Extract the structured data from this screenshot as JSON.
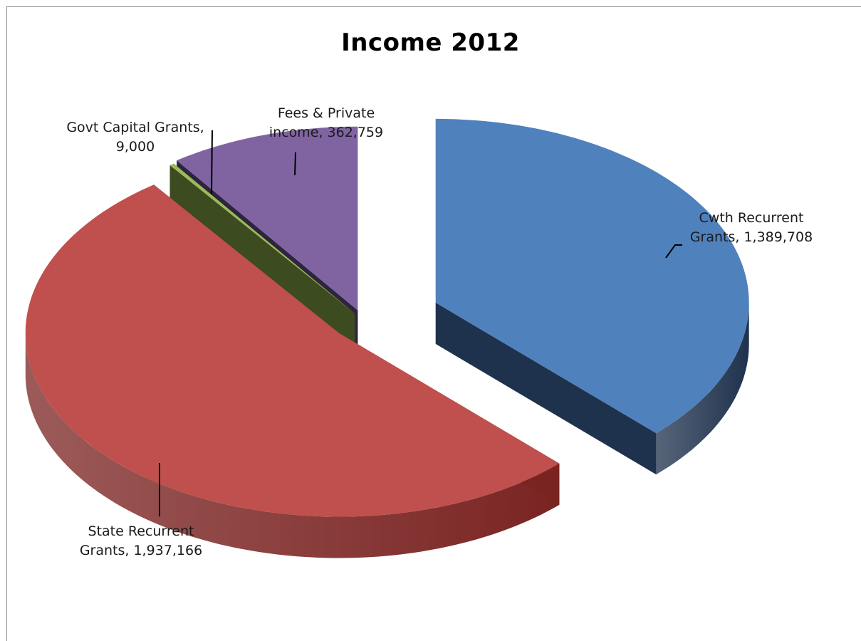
{
  "chart_data": {
    "type": "pie",
    "title": "Income 2012",
    "series": [
      {
        "name": "Cwth Recurrent Grants",
        "value": 1389708,
        "label_lines": [
          "Cwth Recurrent",
          "Grants,  1,389,708"
        ],
        "top_color": "#4f81bd",
        "side_color": "#1f324d"
      },
      {
        "name": "State Recurrent Grants",
        "value": 1937166,
        "label_lines": [
          "State Recurrent",
          "Grants,  1,937,166"
        ],
        "top_color": "#c0504d",
        "side_color": "#7a2422"
      },
      {
        "name": "Govt Capital Grants",
        "value": 9000,
        "label_lines": [
          "Govt Capital Grants,",
          "9,000"
        ],
        "top_color": "#9bbb59",
        "side_color": "#3d4b21"
      },
      {
        "name": "Fees & Private income",
        "value": 362759,
        "label_lines": [
          "Fees & Private",
          "income,  362,759"
        ],
        "top_color": "#8064a2",
        "side_color": "#2e2440"
      }
    ],
    "exploded": true,
    "view": "3d"
  }
}
